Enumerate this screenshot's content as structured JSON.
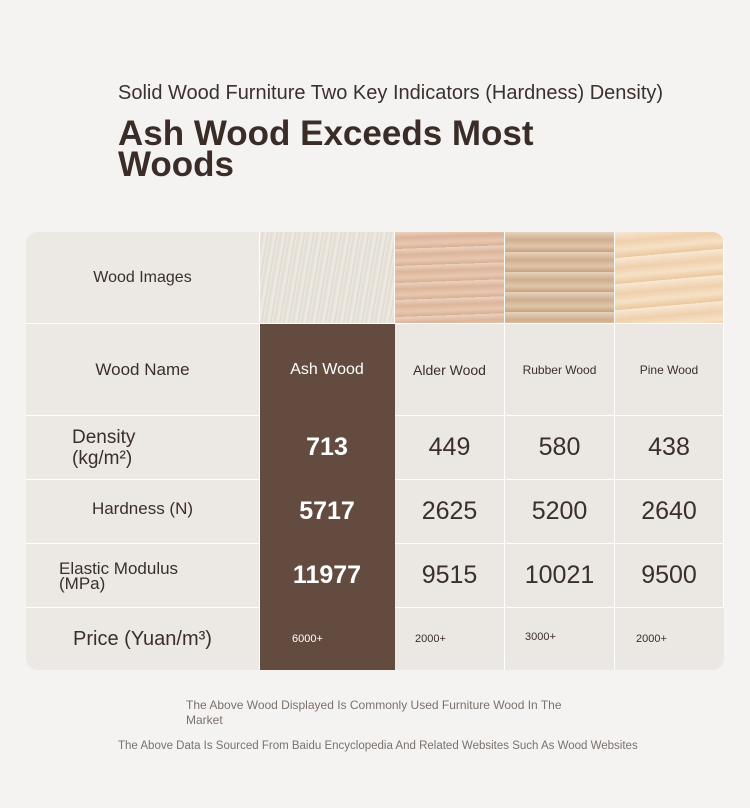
{
  "header": {
    "subtitle": "Solid Wood Furniture Two Key Indicators (Hardness) Density)",
    "headline": "Ash Wood Exceeds Most Woods"
  },
  "table": {
    "row_labels": {
      "images": "Wood Images",
      "name": "Wood Name",
      "density": "Density (kg/m²)",
      "hardness": "Hardness (N)",
      "elastic": "Elastic Modulus (MPa)",
      "price": "Price (Yuan/m³)"
    },
    "woods": [
      {
        "name": "Ash Wood",
        "density": "713",
        "hardness": "5717",
        "elastic": "11977",
        "price": "6000+",
        "swatch": [
          "#ece9e2",
          "#dcd6cb"
        ]
      },
      {
        "name": "Alder Wood",
        "density": "449",
        "hardness": "2625",
        "elastic": "9515",
        "price": "2000+",
        "swatch": [
          "#eacdb8",
          "#d9ae92"
        ]
      },
      {
        "name": "Rubber Wood",
        "density": "580",
        "hardness": "5200",
        "elastic": "10021",
        "price": "3000+",
        "swatch": [
          "#e3cdb5",
          "#cfae8c"
        ]
      },
      {
        "name": "Pine Wood",
        "density": "438",
        "hardness": "2640",
        "elastic": "9500",
        "price": "2000+",
        "swatch": [
          "#f6e3cc",
          "#ecc9a3"
        ]
      }
    ]
  },
  "footnotes": {
    "line1": "The Above Wood Displayed Is Commonly Used Furniture Wood In The Market",
    "line2": "The Above Data Is Sourced From Baidu Encyclopedia And Related Websites Such As Wood Websites"
  },
  "colors": {
    "highlight": "#634b40",
    "cell_bg": "#ebe7e3",
    "page_bg": "#f4f3f2"
  }
}
